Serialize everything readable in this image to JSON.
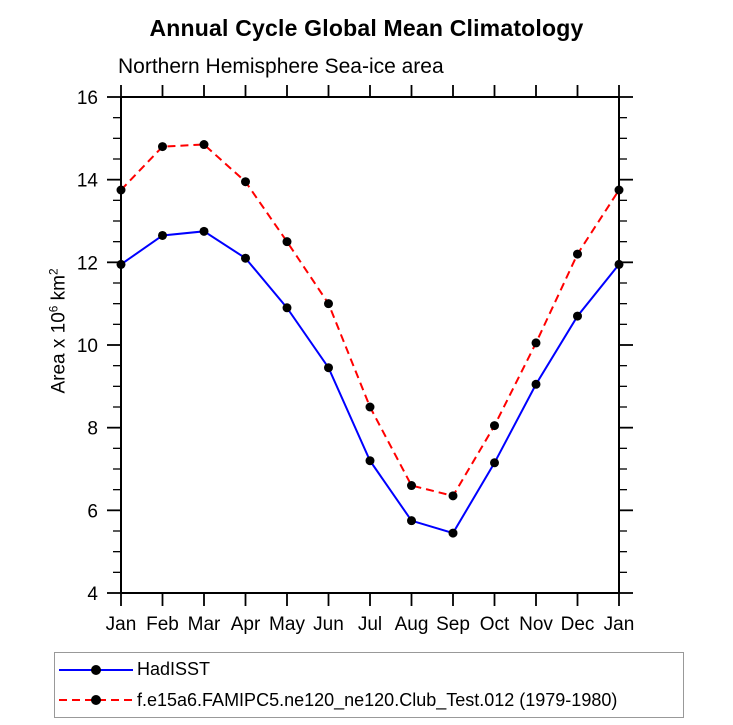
{
  "title": "Annual Cycle Global Mean Climatology",
  "subtitle": "Northern Hemisphere Sea-ice area",
  "ylabel": {
    "base1": "Area x 10",
    "sup1": "6",
    "base2": " km",
    "sup2": "2"
  },
  "legend": {
    "entries": [
      {
        "label": "HadISST",
        "color": "#0000ff",
        "dash": "none"
      },
      {
        "label": "f.e15a6.FAMIPC5.ne120_ne120.Club_Test.012 (1979-1980)",
        "color": "#ff0000",
        "dash": "8,5"
      }
    ]
  },
  "chart_data": {
    "type": "line",
    "title": "Annual Cycle Global Mean Climatology",
    "subtitle": "Northern Hemisphere Sea-ice area",
    "xlabel": "",
    "ylabel": "Area x 10^6 km^2",
    "categories": [
      "Jan",
      "Feb",
      "Mar",
      "Apr",
      "May",
      "Jun",
      "Jul",
      "Aug",
      "Sep",
      "Oct",
      "Nov",
      "Dec",
      "Jan"
    ],
    "ylim": [
      4,
      16
    ],
    "ytick_major": 2,
    "ytick_minor": 0.5,
    "ytick_labels": [
      "4",
      "6",
      "8",
      "10",
      "12",
      "14",
      "16"
    ],
    "grid": false,
    "legend_position": "bottom",
    "marker": {
      "shape": "circle",
      "color": "#000000",
      "radius": 4.5
    },
    "series": [
      {
        "name": "HadISST",
        "color": "#0000ff",
        "line_style": "solid",
        "values": [
          11.95,
          12.65,
          12.75,
          12.1,
          10.9,
          9.45,
          7.2,
          5.75,
          5.45,
          7.15,
          9.05,
          10.7,
          11.95
        ]
      },
      {
        "name": "f.e15a6.FAMIPC5.ne120_ne120.Club_Test.012 (1979-1980)",
        "color": "#ff0000",
        "line_style": "dashed",
        "values": [
          13.75,
          14.8,
          14.85,
          13.95,
          12.5,
          11.0,
          8.5,
          6.6,
          6.35,
          8.05,
          10.05,
          12.2,
          13.75
        ]
      }
    ]
  }
}
